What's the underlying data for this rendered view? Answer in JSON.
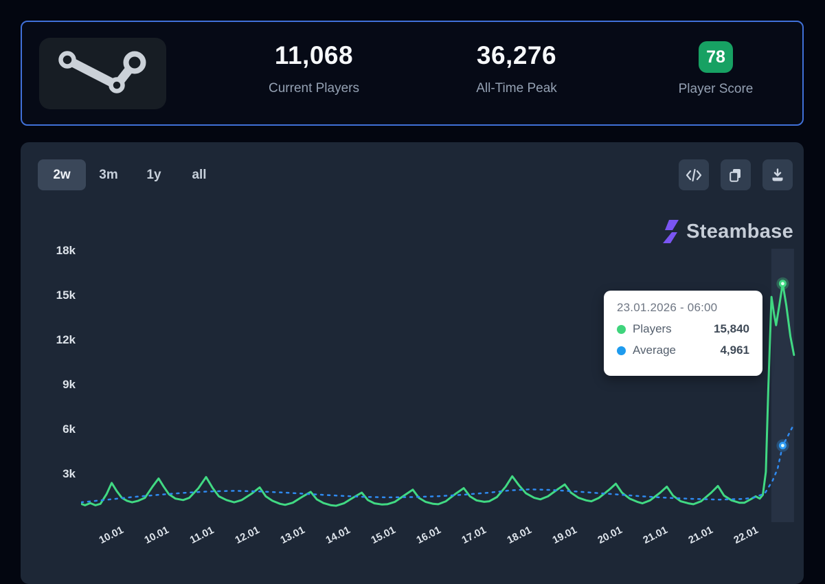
{
  "header": {
    "current_players": "11,068",
    "current_players_label": "Current Players",
    "all_time_peak": "36,276",
    "all_time_peak_label": "All-Time Peak",
    "player_score": "78",
    "player_score_label": "Player Score"
  },
  "chart_card": {
    "range_tabs": [
      {
        "label": "2w",
        "selected": true
      },
      {
        "label": "3m",
        "selected": false
      },
      {
        "label": "1y",
        "selected": false
      },
      {
        "label": "all",
        "selected": false
      }
    ],
    "actions": [
      {
        "name": "embed-code-button",
        "icon": "code-icon"
      },
      {
        "name": "copy-button",
        "icon": "copy-icon"
      },
      {
        "name": "download-button",
        "icon": "download-icon"
      }
    ],
    "brand": {
      "label": "Steambase",
      "icon": "steambase-logo-icon"
    },
    "tooltip": {
      "title": "23.01.2026 - 06:00",
      "rows": [
        {
          "label": "Players",
          "value": "15,840",
          "color": "#3fd47c"
        },
        {
          "label": "Average",
          "value": "4,961",
          "color": "#1e9bee"
        }
      ]
    }
  },
  "chart_data": {
    "type": "line",
    "title": "",
    "xlabel": "",
    "ylabel": "",
    "grid": false,
    "legend_position": "tooltip-only",
    "xlim": [
      0,
      14
    ],
    "ylim": [
      0,
      18300
    ],
    "y_ticks": [
      {
        "label": "18k",
        "value": 18000
      },
      {
        "label": "15k",
        "value": 15000
      },
      {
        "label": "12k",
        "value": 12000
      },
      {
        "label": "9k",
        "value": 9000
      },
      {
        "label": "6k",
        "value": 6000
      },
      {
        "label": "3k",
        "value": 3000
      }
    ],
    "x_tick_labels": [
      "10.01",
      "10.01",
      "11.01",
      "12.01",
      "13.01",
      "14.01",
      "15.01",
      "16.01",
      "17.01",
      "18.01",
      "19.01",
      "20.01",
      "21.01",
      "21.01",
      "22.01"
    ],
    "hover": {
      "x": 13.75
    },
    "series": [
      {
        "name": "Players",
        "color": "#41d983",
        "style": "solid",
        "points": [
          [
            0,
            1050
          ],
          [
            0.08,
            950
          ],
          [
            0.18,
            1100
          ],
          [
            0.28,
            950
          ],
          [
            0.38,
            1050
          ],
          [
            0.5,
            1700
          ],
          [
            0.6,
            2450
          ],
          [
            0.7,
            1900
          ],
          [
            0.8,
            1450
          ],
          [
            0.9,
            1250
          ],
          [
            1,
            1150
          ],
          [
            1.12,
            1250
          ],
          [
            1.25,
            1450
          ],
          [
            1.4,
            2200
          ],
          [
            1.52,
            2750
          ],
          [
            1.62,
            2200
          ],
          [
            1.72,
            1700
          ],
          [
            1.85,
            1400
          ],
          [
            2,
            1300
          ],
          [
            2.12,
            1450
          ],
          [
            2.3,
            2100
          ],
          [
            2.45,
            2850
          ],
          [
            2.58,
            2100
          ],
          [
            2.7,
            1550
          ],
          [
            2.85,
            1300
          ],
          [
            3,
            1150
          ],
          [
            3.15,
            1300
          ],
          [
            3.35,
            1750
          ],
          [
            3.5,
            2150
          ],
          [
            3.62,
            1550
          ],
          [
            3.75,
            1250
          ],
          [
            3.9,
            1050
          ],
          [
            4,
            980
          ],
          [
            4.15,
            1120
          ],
          [
            4.35,
            1550
          ],
          [
            4.5,
            1850
          ],
          [
            4.62,
            1350
          ],
          [
            4.75,
            1100
          ],
          [
            4.9,
            950
          ],
          [
            5,
            920
          ],
          [
            5.15,
            1080
          ],
          [
            5.35,
            1500
          ],
          [
            5.5,
            1800
          ],
          [
            5.62,
            1300
          ],
          [
            5.75,
            1080
          ],
          [
            5.9,
            1000
          ],
          [
            6,
            1020
          ],
          [
            6.15,
            1180
          ],
          [
            6.35,
            1650
          ],
          [
            6.5,
            2000
          ],
          [
            6.62,
            1450
          ],
          [
            6.75,
            1180
          ],
          [
            6.9,
            1050
          ],
          [
            7,
            1020
          ],
          [
            7.15,
            1220
          ],
          [
            7.35,
            1750
          ],
          [
            7.5,
            2100
          ],
          [
            7.62,
            1550
          ],
          [
            7.75,
            1280
          ],
          [
            7.9,
            1180
          ],
          [
            8,
            1220
          ],
          [
            8.15,
            1500
          ],
          [
            8.32,
            2200
          ],
          [
            8.45,
            2900
          ],
          [
            8.58,
            2300
          ],
          [
            8.72,
            1750
          ],
          [
            8.88,
            1450
          ],
          [
            9,
            1350
          ],
          [
            9.15,
            1550
          ],
          [
            9.35,
            2050
          ],
          [
            9.48,
            2350
          ],
          [
            9.6,
            1800
          ],
          [
            9.75,
            1450
          ],
          [
            9.9,
            1280
          ],
          [
            10,
            1220
          ],
          [
            10.15,
            1450
          ],
          [
            10.35,
            2000
          ],
          [
            10.48,
            2400
          ],
          [
            10.6,
            1800
          ],
          [
            10.75,
            1400
          ],
          [
            10.9,
            1180
          ],
          [
            11,
            1080
          ],
          [
            11.15,
            1280
          ],
          [
            11.35,
            1800
          ],
          [
            11.48,
            2200
          ],
          [
            11.6,
            1600
          ],
          [
            11.75,
            1220
          ],
          [
            11.9,
            1080
          ],
          [
            12,
            1020
          ],
          [
            12.15,
            1220
          ],
          [
            12.35,
            1800
          ],
          [
            12.48,
            2250
          ],
          [
            12.6,
            1600
          ],
          [
            12.75,
            1280
          ],
          [
            12.9,
            1120
          ],
          [
            13,
            1120
          ],
          [
            13.12,
            1350
          ],
          [
            13.22,
            1550
          ],
          [
            13.3,
            1400
          ],
          [
            13.36,
            1650
          ],
          [
            13.42,
            3200
          ],
          [
            13.47,
            9000
          ],
          [
            13.53,
            14950
          ],
          [
            13.58,
            13800
          ],
          [
            13.62,
            13050
          ],
          [
            13.68,
            14300
          ],
          [
            13.75,
            15840
          ],
          [
            13.82,
            14400
          ],
          [
            13.9,
            12300
          ],
          [
            13.97,
            11050
          ]
        ]
      },
      {
        "name": "Average",
        "color": "#2f8af0",
        "style": "dashed",
        "points": [
          [
            0,
            1150
          ],
          [
            0.5,
            1320
          ],
          [
            1,
            1500
          ],
          [
            1.5,
            1650
          ],
          [
            2,
            1780
          ],
          [
            2.5,
            1880
          ],
          [
            3,
            1920
          ],
          [
            3.5,
            1880
          ],
          [
            4,
            1800
          ],
          [
            4.5,
            1700
          ],
          [
            5,
            1600
          ],
          [
            5.5,
            1520
          ],
          [
            6,
            1480
          ],
          [
            6.5,
            1500
          ],
          [
            7,
            1560
          ],
          [
            7.5,
            1660
          ],
          [
            8,
            1800
          ],
          [
            8.4,
            1950
          ],
          [
            8.8,
            2020
          ],
          [
            9.2,
            1980
          ],
          [
            9.6,
            1900
          ],
          [
            10,
            1800
          ],
          [
            10.5,
            1680
          ],
          [
            11,
            1550
          ],
          [
            11.5,
            1450
          ],
          [
            12,
            1380
          ],
          [
            12.5,
            1330
          ],
          [
            13,
            1380
          ],
          [
            13.2,
            1480
          ],
          [
            13.4,
            1750
          ],
          [
            13.55,
            2600
          ],
          [
            13.65,
            3400
          ],
          [
            13.75,
            4961
          ],
          [
            13.85,
            5600
          ],
          [
            13.97,
            6400
          ]
        ]
      }
    ],
    "markers": [
      {
        "series": "Players",
        "x": 13.75,
        "y": 15840,
        "color": "#41d983"
      },
      {
        "series": "Average",
        "x": 13.75,
        "y": 4961,
        "color": "#2f9bf5"
      }
    ]
  },
  "colors": {
    "page_bg": "#030610",
    "stats_card_bg": "#060a16",
    "stats_card_border": "#4070d8",
    "chart_card_bg": "#1d2736",
    "hover_band": "#273244",
    "badge_green": "#17a163",
    "players_green": "#41d983",
    "average_blue": "#2f8af0",
    "brand_purple": "#7a55f2"
  }
}
